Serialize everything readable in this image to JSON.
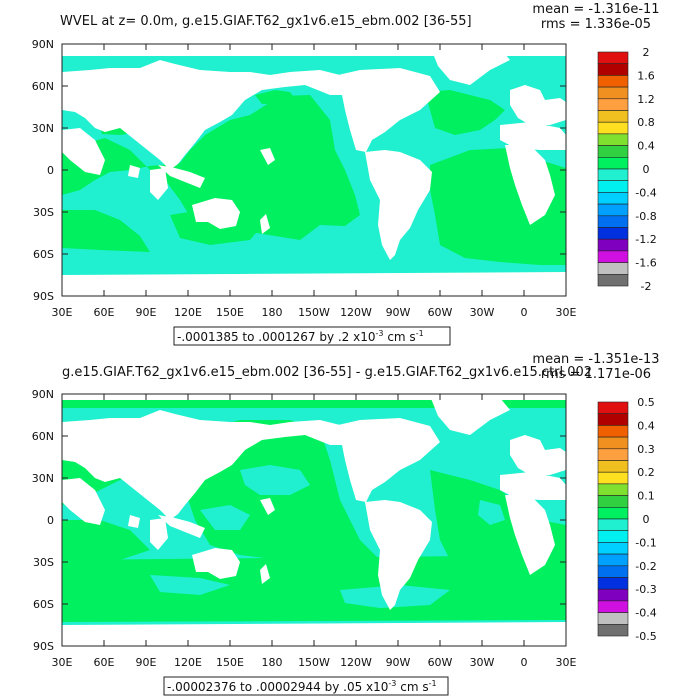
{
  "chart_data": [
    {
      "type": "heatmap",
      "title": "WVEL at z=    0.0m, g.e15.GIAF.T62_gx1v6.e15_ebm.002 [36-55]",
      "stat_mean": "mean = -1.316e-11",
      "stat_rms": "rms = 1.336e-05",
      "y_ticks": [
        "90N",
        "60N",
        "30N",
        "0",
        "30S",
        "60S",
        "90S"
      ],
      "x_ticks": [
        "30E",
        "60E",
        "90E",
        "120E",
        "150E",
        "180",
        "150W",
        "120W",
        "90W",
        "60W",
        "30W",
        "0",
        "30E"
      ],
      "colorbar_labels": [
        "2",
        "1.6",
        "1.2",
        "0.8",
        "0.4",
        "0",
        "-0.4",
        "-0.8",
        "-1.2",
        "-1.6",
        "-2"
      ],
      "colorbar_colors": [
        "#e01010",
        "#b00000",
        "#f06000",
        "#f09020",
        "#ffa040",
        "#f0c020",
        "#ffe020",
        "#80e030",
        "#30d040",
        "#00f060",
        "#20f0d0",
        "#00f0f0",
        "#00d0ff",
        "#00a0ff",
        "#0070f0",
        "#0030e0",
        "#8000c0",
        "#d010e0",
        "#c0c0c0",
        "#707070"
      ],
      "range_label": "-.0001385 to .0001267 by .2 x10",
      "range_exp": "-3",
      "range_units": "cm s",
      "range_units_exp": "-1"
    },
    {
      "type": "heatmap",
      "title": "g.e15.GIAF.T62_gx1v6.e15_ebm.002 [36-55] - g.e15.GIAF.T62_gx1v6.e15.ctrl.002",
      "stat_mean": "mean = -1.351e-13",
      "stat_rms": "rms = 1.171e-06",
      "y_ticks": [
        "90N",
        "60N",
        "30N",
        "0",
        "30S",
        "60S",
        "90S"
      ],
      "x_ticks": [
        "30E",
        "60E",
        "90E",
        "120E",
        "150E",
        "180",
        "150W",
        "120W",
        "90W",
        "60W",
        "30W",
        "0",
        "30E"
      ],
      "colorbar_labels": [
        "0.5",
        "0.4",
        "0.3",
        "0.2",
        "0.1",
        "0",
        "-0.1",
        "-0.2",
        "-0.3",
        "-0.4",
        "-0.5"
      ],
      "colorbar_colors": [
        "#e01010",
        "#b00000",
        "#f06000",
        "#f09020",
        "#ffa040",
        "#f0c020",
        "#ffe020",
        "#80e030",
        "#30d040",
        "#00f060",
        "#20f0d0",
        "#00f0f0",
        "#00d0ff",
        "#00a0ff",
        "#0070f0",
        "#0030e0",
        "#8000c0",
        "#d010e0",
        "#c0c0c0",
        "#707070"
      ],
      "range_label": "-.00002376 to .00002944 by .05 x10",
      "range_exp": "-3",
      "range_units": "cm s",
      "range_units_exp": "-1"
    }
  ],
  "colors": {
    "ocean_positive": "#00f060",
    "ocean_near_zero": "#20f0d0",
    "land": "#ffffff"
  }
}
